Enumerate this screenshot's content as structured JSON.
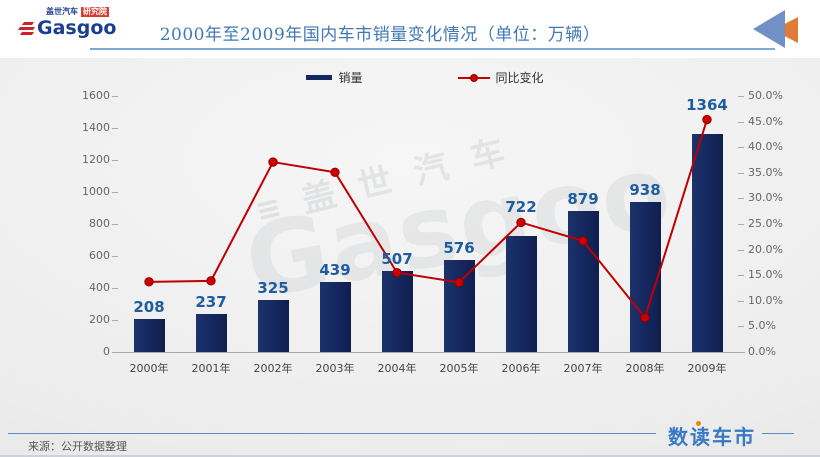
{
  "header": {
    "title": "2000年至2009年国内车市销量变化情况（单位：万辆）",
    "logo": {
      "brand_cn": "盖世汽车",
      "brand_badge": "研究院",
      "brand_en": "Gasgoo"
    }
  },
  "chart_data": {
    "type": "bar+line",
    "categories": [
      "2000年",
      "2001年",
      "2002年",
      "2003年",
      "2004年",
      "2005年",
      "2006年",
      "2007年",
      "2008年",
      "2009年"
    ],
    "series": [
      {
        "name": "销量",
        "type": "bar",
        "axis": "left",
        "color": "#14275e",
        "values": [
          208,
          237,
          325,
          439,
          507,
          576,
          722,
          879,
          938,
          1364
        ]
      },
      {
        "name": "同比变化",
        "type": "line",
        "axis": "right",
        "color": "#c00000",
        "marker_color": "#d10000",
        "values_pct": [
          13.7,
          13.9,
          37.1,
          35.1,
          15.5,
          13.6,
          25.3,
          21.7,
          6.7,
          45.4
        ]
      }
    ],
    "left_axis": {
      "min": 0,
      "max": 1600,
      "step": 200
    },
    "right_axis": {
      "min": 0,
      "max": 50,
      "step": 5,
      "format": "percent_one_decimal"
    },
    "legend_position": "top-center",
    "grid": false,
    "bar_labels_shown": true,
    "line_labels_shown": false
  },
  "watermark": {
    "line1": "盖世汽车",
    "line2": "Gasgoo"
  },
  "footer": {
    "source": "来源：公开数据整理",
    "logo_text": "数读车市"
  },
  "colors": {
    "bar": "#14275e",
    "line": "#c00000",
    "value_label": "#1d5c9e",
    "title": "#4179b6",
    "header_underline": "#7fa8d2",
    "footer_line": "#5b8fc4",
    "footer_logo_blue": "#3779c2",
    "footer_logo_dot": "#f08300",
    "arrow_blue": "#7191c6",
    "arrow_orange": "#e07b35",
    "logo_blue": "#1b3f8f",
    "logo_red": "#cc2229"
  }
}
